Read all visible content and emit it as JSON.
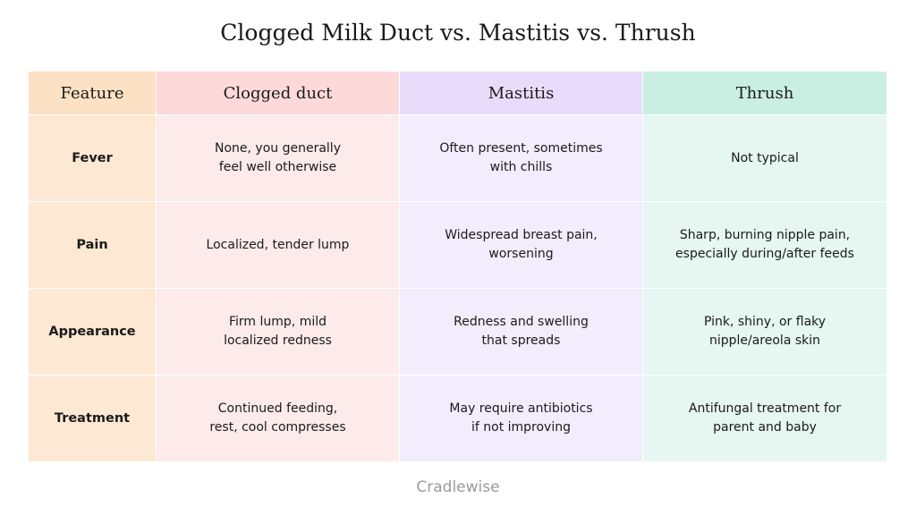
{
  "header": {
    "title": "Clogged Milk Duct vs. Mastitis vs. Thrush"
  },
  "table": {
    "columns": [
      "Feature",
      "Clogged duct",
      "Mastitis",
      "Thrush"
    ],
    "rows": [
      {
        "feature": "Fever",
        "cells": [
          [
            "None, you generally",
            "feel well otherwise"
          ],
          [
            "Often present, sometimes",
            "with chills"
          ],
          [
            "Not typical"
          ]
        ]
      },
      {
        "feature": "Pain",
        "cells": [
          [
            "Localized, tender lump"
          ],
          [
            "Widespread breast pain,",
            "worsening"
          ],
          [
            "Sharp, burning nipple pain,",
            "especially during/after feeds"
          ]
        ]
      },
      {
        "feature": "Appearance",
        "cells": [
          [
            "Firm lump, mild",
            "localized redness"
          ],
          [
            "Redness and swelling",
            "that spreads"
          ],
          [
            "Pink, shiny, or flaky",
            "nipple/areola skin"
          ]
        ]
      },
      {
        "feature": "Treatment",
        "cells": [
          [
            "Continued feeding,",
            "rest, cool compresses"
          ],
          [
            "May require antibiotics",
            "if not improving"
          ],
          [
            "Antifungal treatment for",
            "parent and baby"
          ]
        ]
      }
    ]
  },
  "footer": {
    "brand": "Cradlewise"
  }
}
